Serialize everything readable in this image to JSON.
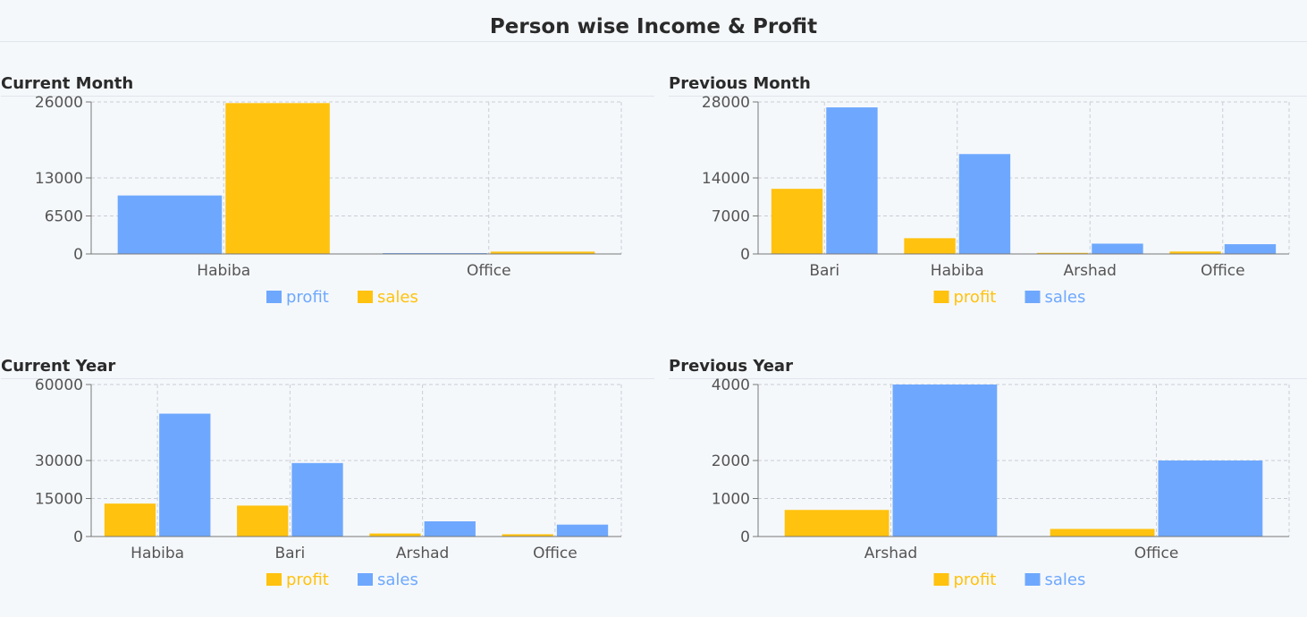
{
  "page_title": "Person wise Income & Profit",
  "colors": {
    "blue": "#6ea8fe",
    "yellow": "#ffc20e"
  },
  "chart_data": [
    {
      "type": "bar",
      "title": "Current Month",
      "categories": [
        "Habiba",
        "Office"
      ],
      "ylim": [
        0,
        26000
      ],
      "yticks": [
        0,
        6500,
        13000,
        26000
      ],
      "grid": true,
      "legend_position": "bottom-center",
      "series": [
        {
          "name": "profit",
          "color": "#6ea8fe",
          "values": [
            10000,
            150
          ]
        },
        {
          "name": "sales",
          "color": "#ffc20e",
          "values": [
            25800,
            400
          ]
        }
      ]
    },
    {
      "type": "bar",
      "title": "Previous Month",
      "categories": [
        "Bari",
        "Habiba",
        "Arshad",
        "Office"
      ],
      "ylim": [
        0,
        28000
      ],
      "yticks": [
        0,
        7000,
        14000,
        28000
      ],
      "grid": true,
      "legend_position": "bottom-center",
      "series": [
        {
          "name": "profit",
          "color": "#ffc20e",
          "values": [
            12000,
            2900,
            200,
            450
          ]
        },
        {
          "name": "sales",
          "color": "#6ea8fe",
          "values": [
            27000,
            18400,
            1900,
            1800
          ]
        }
      ]
    },
    {
      "type": "bar",
      "title": "Current Year",
      "categories": [
        "Habiba",
        "Bari",
        "Arshad",
        "Office"
      ],
      "ylim": [
        0,
        60000
      ],
      "yticks": [
        0,
        15000,
        30000,
        60000
      ],
      "grid": true,
      "legend_position": "bottom-center",
      "series": [
        {
          "name": "profit",
          "color": "#ffc20e",
          "values": [
            13000,
            12200,
            1200,
            900
          ]
        },
        {
          "name": "sales",
          "color": "#6ea8fe",
          "values": [
            48500,
            29000,
            6000,
            4700
          ]
        }
      ]
    },
    {
      "type": "bar",
      "title": "Previous Year",
      "categories": [
        "Arshad",
        "Office"
      ],
      "ylim": [
        0,
        4000
      ],
      "yticks": [
        0,
        1000,
        2000,
        4000
      ],
      "grid": true,
      "legend_position": "bottom-center",
      "series": [
        {
          "name": "profit",
          "color": "#ffc20e",
          "values": [
            700,
            200
          ]
        },
        {
          "name": "sales",
          "color": "#6ea8fe",
          "values": [
            4000,
            2000
          ]
        }
      ]
    }
  ]
}
